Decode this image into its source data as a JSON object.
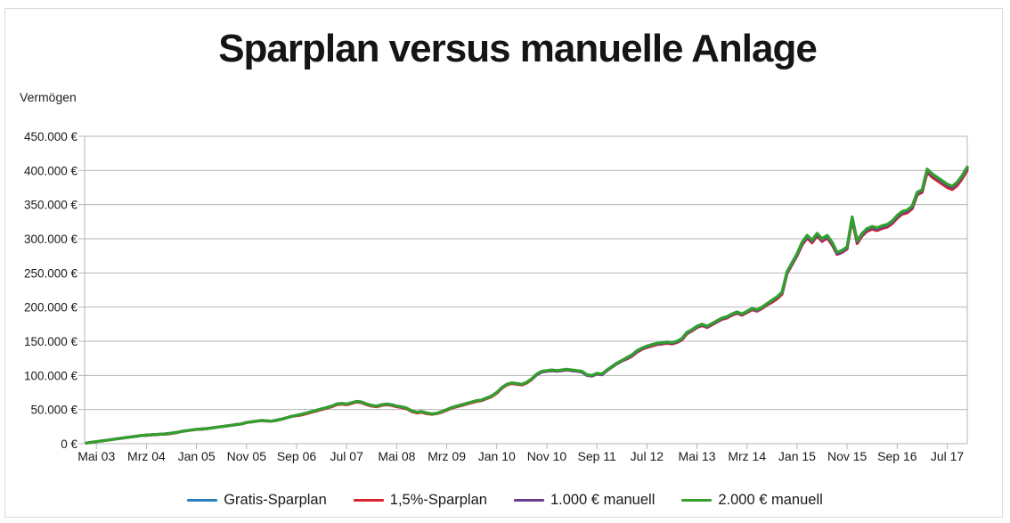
{
  "frame_border_color": "#d9d9e0",
  "grid_color": "#b6b6b6",
  "chart_data": {
    "type": "line",
    "title": "Sparplan versus manuelle Anlage",
    "ylabel": "Vermögen",
    "xlabel": "",
    "grid": true,
    "legend_position": "bottom",
    "ylim_eur": [
      0,
      450000
    ],
    "y_tick_values_thousand_eur": [
      0,
      50,
      100,
      150,
      200,
      250,
      300,
      350,
      400,
      450
    ],
    "y_tick_labels": [
      "0 €",
      "50.000 €",
      "100.000 €",
      "150.000 €",
      "200.000 €",
      "250.000 €",
      "300.000 €",
      "350.000 €",
      "400.000 €",
      "450.000 €"
    ],
    "x_tick_labels": [
      "Mai 03",
      "Mrz 04",
      "Jan 05",
      "Nov 05",
      "Sep 06",
      "Jul 07",
      "Mai 08",
      "Mrz 09",
      "Jan 10",
      "Nov 10",
      "Sep 11",
      "Jul 12",
      "Mai 13",
      "Mrz 14",
      "Jan 15",
      "Nov 15",
      "Sep 16",
      "Jul 17"
    ],
    "x_note": "monatliche Werte, Mai 2003 bis Dez 2017",
    "values_unit": "thousand EUR",
    "series": [
      {
        "name": "Gratis-Sparplan",
        "color": "#2a7fc1",
        "values": [
          1,
          2,
          3,
          4,
          5,
          6,
          7,
          8,
          9,
          10,
          11,
          12,
          12.5,
          13,
          13.5,
          14,
          14.5,
          15.5,
          16.5,
          18,
          19,
          20,
          21,
          21.5,
          22,
          23,
          24,
          25,
          26,
          27,
          28,
          29,
          31,
          32,
          33,
          34,
          33.5,
          33,
          34.5,
          36,
          38,
          40,
          41.5,
          43,
          45,
          47,
          49,
          51,
          53,
          55,
          58,
          59,
          58,
          60,
          62,
          61,
          58,
          56,
          55,
          57,
          58,
          57,
          55,
          54,
          52,
          48,
          46,
          47,
          45,
          43.5,
          44.5,
          47,
          50,
          53,
          55,
          57,
          59,
          61,
          63,
          64,
          67,
          70,
          75,
          82,
          87,
          89,
          88,
          87,
          90,
          95,
          102,
          106,
          107,
          108,
          107,
          108,
          109,
          108,
          107,
          106,
          101,
          100,
          103,
          102,
          108,
          113,
          118,
          122,
          126,
          130,
          136,
          140,
          143,
          145,
          147,
          148,
          149,
          148,
          150,
          154,
          163,
          167,
          172,
          175,
          172,
          176,
          180,
          184,
          186,
          190,
          193,
          190,
          194,
          198,
          196,
          200,
          205,
          210,
          215,
          222,
          252,
          265,
          278,
          295,
          305,
          298,
          308,
          300,
          305,
          295,
          280,
          283,
          288,
          332,
          297,
          308,
          315,
          318,
          316,
          319,
          321,
          326,
          334,
          340,
          342,
          348,
          368,
          372,
          402,
          395,
          390,
          385,
          380,
          377,
          383,
          393,
          405
        ]
      },
      {
        "name": "1,5%-Sparplan",
        "color": "#d8232f",
        "values": [
          1,
          2,
          3,
          4,
          5,
          6,
          7,
          8,
          9,
          10,
          11,
          12,
          12,
          13,
          13,
          14,
          14,
          15,
          16,
          18,
          19,
          20,
          21,
          21,
          22,
          23,
          24,
          25,
          26,
          27,
          28,
          29,
          31,
          32,
          33,
          34,
          33,
          33,
          34,
          36,
          38,
          40,
          41,
          42,
          44,
          46,
          48,
          50,
          52,
          54,
          57,
          58,
          57,
          59,
          61,
          60,
          57,
          55,
          54,
          56,
          57,
          56,
          54,
          53,
          51,
          47,
          45,
          46,
          44,
          43,
          44,
          46,
          49,
          52,
          54,
          56,
          58,
          60,
          62,
          63,
          66,
          69,
          74,
          81,
          86,
          88,
          87,
          86,
          89,
          94,
          101,
          105,
          106,
          107,
          106,
          107,
          108,
          107,
          106,
          105,
          100,
          99,
          102,
          101,
          107,
          112,
          117,
          121,
          124,
          128,
          134,
          138,
          141,
          143,
          145,
          146,
          147,
          146,
          148,
          152,
          161,
          165,
          170,
          173,
          170,
          174,
          178,
          182,
          184,
          188,
          191,
          188,
          192,
          196,
          194,
          198,
          203,
          207,
          212,
          219,
          249,
          262,
          275,
          291,
          301,
          294,
          304,
          296,
          301,
          291,
          277,
          280,
          285,
          328,
          293,
          304,
          311,
          314,
          312,
          315,
          317,
          322,
          330,
          336,
          338,
          344,
          364,
          368,
          397,
          390,
          385,
          380,
          375,
          372,
          378,
          388,
          400
        ]
      },
      {
        "name": "1.000 € manuell",
        "color": "#6a3d8f",
        "values": [
          1,
          2,
          3,
          4,
          5,
          6,
          7,
          8,
          9,
          10,
          11,
          12,
          12.5,
          13,
          13.5,
          14,
          14.5,
          15.5,
          16.5,
          18,
          19,
          20,
          21,
          21.5,
          22,
          23,
          24,
          25,
          26,
          27,
          28,
          29,
          31,
          32,
          33,
          34,
          33.5,
          33,
          34.5,
          36,
          38,
          40,
          41.5,
          43,
          45,
          47,
          49,
          51,
          53,
          55,
          58,
          59,
          58,
          60,
          62,
          61,
          58,
          56,
          55,
          57,
          58,
          57,
          55,
          54,
          52,
          48,
          46,
          47,
          45,
          43.5,
          44.5,
          47,
          50,
          53,
          55,
          57,
          59,
          61,
          63,
          64,
          67,
          70,
          75,
          82,
          87,
          89,
          88,
          87,
          90,
          95,
          101,
          105,
          106,
          107,
          106,
          107,
          108,
          107,
          106,
          105,
          100,
          99,
          102,
          101,
          107,
          112,
          117,
          121,
          125,
          129,
          135,
          139,
          142,
          144,
          146,
          147,
          148,
          147,
          149,
          153,
          162,
          166,
          171,
          174,
          171,
          175,
          179,
          183,
          185,
          189,
          192,
          189,
          193,
          197,
          195,
          199,
          204,
          209,
          214,
          221,
          250,
          263,
          276,
          293,
          303,
          296,
          306,
          298,
          303,
          293,
          278,
          281,
          286,
          330,
          295,
          306,
          313,
          316,
          314,
          317,
          319,
          324,
          332,
          338,
          340,
          346,
          366,
          370,
          400,
          393,
          388,
          383,
          378,
          375,
          381,
          391,
          403
        ]
      },
      {
        "name": "2.000 € manuell",
        "color": "#33a02c",
        "values": [
          1,
          2,
          3,
          4,
          5,
          6,
          7,
          8,
          9,
          10,
          11,
          12,
          12.5,
          13,
          13.5,
          14,
          14.5,
          15.5,
          16.5,
          18,
          19,
          20,
          21,
          21.5,
          22,
          23,
          24,
          25,
          26,
          27,
          28,
          29,
          31,
          32,
          33,
          34,
          33.5,
          33,
          34.5,
          36,
          38,
          40,
          41.5,
          43,
          45,
          47,
          49,
          51,
          53,
          55,
          58,
          59,
          58,
          60,
          62,
          61,
          58,
          56,
          55,
          57,
          58,
          57,
          55,
          54,
          52,
          48,
          46,
          47,
          45,
          43.5,
          44.5,
          47,
          50,
          53,
          55,
          57,
          59,
          61,
          63,
          64,
          67,
          70,
          75,
          82,
          87,
          89,
          88,
          87,
          90,
          95,
          102,
          106,
          107,
          108,
          107,
          108,
          109,
          108,
          107,
          106,
          101,
          100,
          103,
          102,
          108,
          113,
          118,
          122,
          126,
          130,
          136,
          140,
          143,
          145,
          147,
          148,
          149,
          148,
          150,
          154,
          163,
          167,
          172,
          175,
          172,
          176,
          180,
          184,
          186,
          190,
          193,
          190,
          194,
          198,
          196,
          200,
          205,
          210,
          215,
          222,
          252,
          265,
          278,
          295,
          305,
          298,
          308,
          300,
          305,
          295,
          280,
          283,
          288,
          332,
          297,
          308,
          315,
          318,
          316,
          319,
          321,
          326,
          334,
          340,
          342,
          348,
          368,
          372,
          402,
          395,
          390,
          385,
          380,
          377,
          383,
          393,
          405
        ]
      }
    ]
  }
}
